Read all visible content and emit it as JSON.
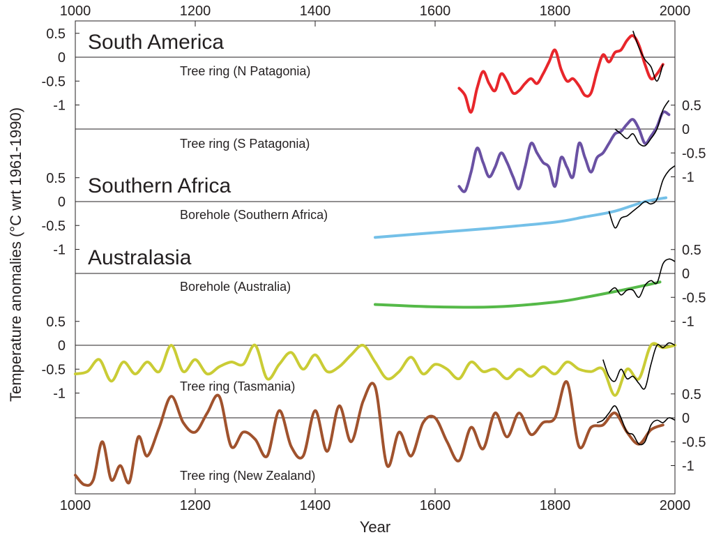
{
  "chart_data": {
    "type": "line",
    "xlabel": "Year",
    "ylabel": "Temperature anomalies  (°C wrt 1961-1990)",
    "xlim": [
      1000,
      2000
    ],
    "x_ticks": [
      "1000",
      "1200",
      "1400",
      "1600",
      "1800",
      "2000"
    ],
    "y_tick_labels": [
      "0.5",
      "0",
      "-0.5",
      "-1"
    ],
    "grid": false,
    "legend": "none",
    "colors": {
      "n_patagonia": "#e8262b",
      "s_patagonia": "#6a51a3",
      "borehole_southern_africa": "#74c0e8",
      "borehole_australia": "#55b948",
      "tasmania": "#cacc35",
      "new_zealand": "#a0522d",
      "instrumental": "#000000"
    },
    "regions": [
      {
        "key": "south_america",
        "title": "South America"
      },
      {
        "key": "southern_africa",
        "title": "Southern Africa"
      },
      {
        "key": "australasia",
        "title": "Australasia"
      }
    ],
    "panels": [
      {
        "key": "n_patagonia",
        "label": "Tree ring (N Patagonia)",
        "axis_side": "left",
        "color_key": "n_patagonia",
        "x": [
          1640,
          1650,
          1660,
          1670,
          1680,
          1690,
          1700,
          1710,
          1720,
          1730,
          1740,
          1750,
          1760,
          1770,
          1780,
          1790,
          1800,
          1810,
          1820,
          1830,
          1840,
          1850,
          1860,
          1870,
          1880,
          1890,
          1900,
          1910,
          1920,
          1930,
          1940,
          1950,
          1960,
          1970,
          1980
        ],
        "y": [
          -0.65,
          -0.8,
          -1.15,
          -0.65,
          -0.3,
          -0.55,
          -0.7,
          -0.35,
          -0.5,
          -0.75,
          -0.7,
          -0.55,
          -0.45,
          -0.55,
          -0.35,
          -0.1,
          0.15,
          -0.25,
          -0.5,
          -0.45,
          -0.6,
          -0.8,
          -0.75,
          -0.3,
          0.05,
          -0.1,
          0.1,
          0.15,
          0.35,
          0.45,
          0.25,
          -0.15,
          -0.45,
          -0.35,
          -0.15
        ],
        "instrumental": {
          "x": [
            1930,
            1940,
            1950,
            1960,
            1970,
            1980
          ],
          "y": [
            0.55,
            0.2,
            -0.05,
            -0.2,
            -0.5,
            -0.15
          ]
        }
      },
      {
        "key": "s_patagonia",
        "label": "Tree ring (S Patagonia)",
        "axis_side": "right",
        "color_key": "s_patagonia",
        "x": [
          1640,
          1650,
          1660,
          1670,
          1680,
          1690,
          1700,
          1710,
          1720,
          1730,
          1740,
          1750,
          1760,
          1770,
          1780,
          1790,
          1800,
          1810,
          1820,
          1830,
          1840,
          1850,
          1860,
          1870,
          1880,
          1890,
          1900,
          1910,
          1920,
          1930,
          1940,
          1950,
          1960,
          1970,
          1980,
          1990
        ],
        "y": [
          -1.2,
          -1.3,
          -0.9,
          -0.4,
          -0.7,
          -1.0,
          -0.8,
          -0.5,
          -0.7,
          -1.0,
          -1.25,
          -0.8,
          -0.3,
          -0.5,
          -0.7,
          -0.8,
          -1.2,
          -0.6,
          -0.8,
          -1.0,
          -0.3,
          -0.6,
          -0.9,
          -0.6,
          -0.5,
          -0.3,
          -0.1,
          -0.05,
          0.1,
          0.2,
          0.0,
          -0.3,
          -0.15,
          0.05,
          0.35,
          0.3
        ],
        "instrumental": {
          "x": [
            1900,
            1910,
            1920,
            1930,
            1940,
            1950,
            1960,
            1970,
            1980,
            1990
          ],
          "y": [
            0.0,
            -0.1,
            -0.2,
            -0.1,
            -0.3,
            -0.35,
            -0.2,
            0.0,
            0.4,
            0.6
          ]
        }
      },
      {
        "key": "borehole_southern_africa",
        "label": "Borehole (Southern Africa)",
        "axis_side": "left",
        "color_key": "borehole_southern_africa",
        "x": [
          1500,
          1600,
          1700,
          1800,
          1850,
          1900,
          1950,
          1985
        ],
        "y": [
          -0.75,
          -0.65,
          -0.55,
          -0.43,
          -0.32,
          -0.2,
          0.0,
          0.08
        ],
        "instrumental": {
          "x": [
            1890,
            1900,
            1910,
            1920,
            1930,
            1940,
            1950,
            1960,
            1970,
            1980,
            1990,
            2000
          ],
          "y": [
            -0.2,
            -0.55,
            -0.35,
            -0.3,
            -0.2,
            -0.1,
            0.0,
            -0.05,
            0.05,
            0.45,
            0.65,
            0.75
          ]
        }
      },
      {
        "key": "borehole_australia",
        "label": "Borehole (Australia)",
        "axis_side": "right",
        "color_key": "borehole_australia",
        "x": [
          1500,
          1600,
          1700,
          1800,
          1850,
          1900,
          1950,
          1975
        ],
        "y": [
          -0.65,
          -0.7,
          -0.7,
          -0.6,
          -0.5,
          -0.38,
          -0.25,
          -0.18
        ],
        "instrumental": {
          "x": [
            1890,
            1900,
            1910,
            1920,
            1930,
            1940,
            1950,
            1960,
            1970,
            1980,
            1990,
            2000
          ],
          "y": [
            -0.4,
            -0.3,
            -0.45,
            -0.35,
            -0.35,
            -0.5,
            -0.25,
            -0.15,
            -0.2,
            0.2,
            0.3,
            0.25
          ]
        }
      },
      {
        "key": "tasmania",
        "label": "Tree ring (Tasmania)",
        "axis_side": "left",
        "color_key": "tasmania",
        "x": [
          1000,
          1020,
          1040,
          1060,
          1080,
          1100,
          1120,
          1140,
          1160,
          1180,
          1200,
          1220,
          1240,
          1260,
          1280,
          1300,
          1320,
          1340,
          1360,
          1380,
          1400,
          1420,
          1440,
          1460,
          1480,
          1500,
          1520,
          1540,
          1560,
          1580,
          1600,
          1620,
          1640,
          1660,
          1680,
          1700,
          1720,
          1740,
          1760,
          1780,
          1800,
          1820,
          1840,
          1860,
          1880,
          1900,
          1920,
          1940,
          1960,
          1980,
          2000
        ],
        "y": [
          -0.6,
          -0.55,
          -0.3,
          -0.75,
          -0.35,
          -0.6,
          -0.35,
          -0.55,
          0.0,
          -0.55,
          -0.3,
          -0.6,
          -0.45,
          -0.35,
          -0.4,
          0.0,
          -0.7,
          -0.4,
          -0.15,
          -0.5,
          -0.2,
          -0.55,
          -0.45,
          -0.2,
          0.0,
          -0.35,
          -0.7,
          -0.55,
          -0.25,
          -0.6,
          -0.4,
          -0.5,
          -0.7,
          -0.35,
          -0.55,
          -0.5,
          -0.7,
          -0.5,
          -0.65,
          -0.45,
          -0.6,
          -0.35,
          -0.5,
          -0.55,
          -0.5,
          -1.05,
          -0.5,
          -0.7,
          0.0,
          -0.05,
          0.0
        ],
        "instrumental": {
          "x": [
            1880,
            1890,
            1900,
            1910,
            1920,
            1930,
            1940,
            1950,
            1960,
            1970,
            1980,
            1990,
            2000
          ],
          "y": [
            -0.3,
            -0.65,
            -0.75,
            -0.5,
            -0.7,
            -0.65,
            -0.8,
            -0.9,
            -0.4,
            0.0,
            -0.05,
            0.05,
            0.0
          ]
        }
      },
      {
        "key": "new_zealand",
        "label": "Tree ring (New Zealand)",
        "axis_side": "right",
        "color_key": "new_zealand",
        "x": [
          1000,
          1015,
          1030,
          1045,
          1060,
          1075,
          1090,
          1105,
          1120,
          1140,
          1160,
          1180,
          1200,
          1220,
          1240,
          1260,
          1280,
          1300,
          1320,
          1340,
          1360,
          1380,
          1400,
          1420,
          1440,
          1460,
          1480,
          1500,
          1520,
          1540,
          1560,
          1580,
          1600,
          1620,
          1640,
          1660,
          1680,
          1700,
          1720,
          1740,
          1760,
          1780,
          1800,
          1820,
          1840,
          1860,
          1880,
          1900,
          1920,
          1940,
          1960,
          1980
        ],
        "y": [
          -1.2,
          -1.4,
          -1.3,
          -0.5,
          -1.3,
          -1.0,
          -1.35,
          -0.4,
          -0.8,
          -0.2,
          0.45,
          -0.1,
          -0.3,
          0.1,
          0.45,
          -0.6,
          -0.3,
          -0.45,
          -0.8,
          0.15,
          -0.6,
          -0.8,
          0.15,
          -0.7,
          0.25,
          -0.5,
          0.35,
          0.65,
          -1.0,
          -0.3,
          -0.8,
          -0.1,
          0.0,
          -0.5,
          -0.9,
          -0.2,
          -0.65,
          0.1,
          -0.4,
          0.1,
          -0.35,
          -0.1,
          0.0,
          0.75,
          -0.6,
          -0.2,
          -0.15,
          0.1,
          -0.3,
          -0.55,
          -0.25,
          -0.15
        ],
        "instrumental": {
          "x": [
            1870,
            1880,
            1890,
            1900,
            1910,
            1920,
            1930,
            1940,
            1950,
            1960,
            1970,
            1980,
            1990,
            2000
          ],
          "y": [
            -0.1,
            -0.05,
            0.1,
            0.25,
            0.0,
            -0.3,
            -0.35,
            -0.55,
            -0.5,
            -0.15,
            -0.05,
            -0.1,
            0.0,
            -0.05
          ]
        }
      }
    ]
  }
}
